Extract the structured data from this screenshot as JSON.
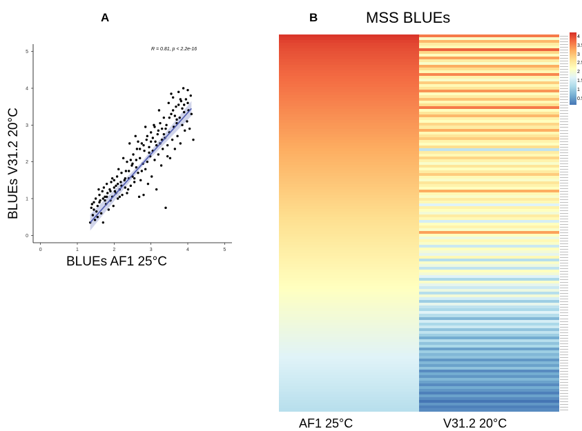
{
  "panel_a": {
    "letter": "A",
    "xlabel": "BLUEs AF1 25°C",
    "ylabel": "BLUEs V31.2 20°C",
    "stat": "R = 0.81, p < 2.2e-16"
  },
  "panel_b": {
    "letter": "B",
    "title": "MSS BLUEs",
    "col_labels": [
      "AF1  25°C",
      "V31.2   20°C"
    ],
    "legend_ticks": [
      "4",
      "3.5",
      "3",
      "2.5",
      "2",
      "1.5",
      "1",
      "0.5"
    ]
  },
  "colors": {
    "fit_line": "#4f5bb0",
    "confidence_band": "#aab0d8",
    "point": "#000000"
  },
  "chart_data": [
    {
      "type": "scatter",
      "xlabel": "BLUEs AF1 25°C",
      "ylabel": "BLUEs V31.2 20°C",
      "xlim": [
        -0.2,
        5.2
      ],
      "ylim": [
        -0.2,
        5.2
      ],
      "xticks": [
        "0",
        "1",
        "2",
        "3",
        "4",
        "5"
      ],
      "yticks": [
        "0",
        "1",
        "2",
        "3",
        "4",
        "5"
      ],
      "grid": false,
      "annotation": "R = 0.81, p < 2.2e-16",
      "fit": {
        "x": [
          1.35,
          4.1
        ],
        "y": [
          0.35,
          3.45
        ]
      },
      "points": [
        [
          1.35,
          0.35
        ],
        [
          1.38,
          0.75
        ],
        [
          1.4,
          0.85
        ],
        [
          1.42,
          0.55
        ],
        [
          1.45,
          0.9
        ],
        [
          1.48,
          0.42
        ],
        [
          1.5,
          1.0
        ],
        [
          1.52,
          0.65
        ],
        [
          1.55,
          0.8
        ],
        [
          1.58,
          1.25
        ],
        [
          1.6,
          1.1
        ],
        [
          1.62,
          0.95
        ],
        [
          1.65,
          0.6
        ],
        [
          1.68,
          1.2
        ],
        [
          1.7,
          0.35
        ],
        [
          1.72,
          1.3
        ],
        [
          1.75,
          1.05
        ],
        [
          1.78,
          0.85
        ],
        [
          1.8,
          1.4
        ],
        [
          1.82,
          1.15
        ],
        [
          1.85,
          0.7
        ],
        [
          1.88,
          1.25
        ],
        [
          1.9,
          0.95
        ],
        [
          1.92,
          1.45
        ],
        [
          1.95,
          1.05
        ],
        [
          1.98,
          0.8
        ],
        [
          2.0,
          1.5
        ],
        [
          2.02,
          1.2
        ],
        [
          2.05,
          1.35
        ],
        [
          2.08,
          1.6
        ],
        [
          2.1,
          1.0
        ],
        [
          2.12,
          1.8
        ],
        [
          2.15,
          1.25
        ],
        [
          2.18,
          1.45
        ],
        [
          2.2,
          1.7
        ],
        [
          2.22,
          1.1
        ],
        [
          2.25,
          2.1
        ],
        [
          2.28,
          1.5
        ],
        [
          2.3,
          1.3
        ],
        [
          2.32,
          1.75
        ],
        [
          2.35,
          2.0
        ],
        [
          2.38,
          1.25
        ],
        [
          2.4,
          1.55
        ],
        [
          2.42,
          2.5
        ],
        [
          2.45,
          1.35
        ],
        [
          2.48,
          1.9
        ],
        [
          2.5,
          1.6
        ],
        [
          2.52,
          2.2
        ],
        [
          2.55,
          1.45
        ],
        [
          2.58,
          2.7
        ],
        [
          2.6,
          1.85
        ],
        [
          2.62,
          2.35
        ],
        [
          2.65,
          1.7
        ],
        [
          2.68,
          1.05
        ],
        [
          2.7,
          2.1
        ],
        [
          2.72,
          1.5
        ],
        [
          2.75,
          2.5
        ],
        [
          2.78,
          1.95
        ],
        [
          2.8,
          1.1
        ],
        [
          2.82,
          2.3
        ],
        [
          2.85,
          1.8
        ],
        [
          2.88,
          2.6
        ],
        [
          2.9,
          2.0
        ],
        [
          2.92,
          1.4
        ],
        [
          2.95,
          2.4
        ],
        [
          2.98,
          2.15
        ],
        [
          3.0,
          2.8
        ],
        [
          3.02,
          1.6
        ],
        [
          3.05,
          2.3
        ],
        [
          3.08,
          3.0
        ],
        [
          3.1,
          2.05
        ],
        [
          3.12,
          2.55
        ],
        [
          3.15,
          1.25
        ],
        [
          3.18,
          2.75
        ],
        [
          3.2,
          2.2
        ],
        [
          3.22,
          3.4
        ],
        [
          3.25,
          2.5
        ],
        [
          3.28,
          1.9
        ],
        [
          3.3,
          2.9
        ],
        [
          3.32,
          2.35
        ],
        [
          3.35,
          3.2
        ],
        [
          3.38,
          2.65
        ],
        [
          3.4,
          0.75
        ],
        [
          3.42,
          3.0
        ],
        [
          3.45,
          2.45
        ],
        [
          3.48,
          3.6
        ],
        [
          3.5,
          2.8
        ],
        [
          3.52,
          2.1
        ],
        [
          3.55,
          3.3
        ],
        [
          3.58,
          2.6
        ],
        [
          3.6,
          3.75
        ],
        [
          3.62,
          2.95
        ],
        [
          3.65,
          2.35
        ],
        [
          3.68,
          3.5
        ],
        [
          3.7,
          3.05
        ],
        [
          3.72,
          2.7
        ],
        [
          3.75,
          3.9
        ],
        [
          3.78,
          3.2
        ],
        [
          3.8,
          2.5
        ],
        [
          3.82,
          3.65
        ],
        [
          3.85,
          3.0
        ],
        [
          3.88,
          4.0
        ],
        [
          3.9,
          3.35
        ],
        [
          3.92,
          2.85
        ],
        [
          3.95,
          3.7
        ],
        [
          3.98,
          3.1
        ],
        [
          4.0,
          3.95
        ],
        [
          4.02,
          3.4
        ],
        [
          4.05,
          2.9
        ],
        [
          4.08,
          3.8
        ],
        [
          4.1,
          3.3
        ],
        [
          4.15,
          2.6
        ],
        [
          1.55,
          0.5
        ],
        [
          1.95,
          1.55
        ],
        [
          2.15,
          1.05
        ],
        [
          2.45,
          2.05
        ],
        [
          2.65,
          2.55
        ],
        [
          2.85,
          2.95
        ],
        [
          3.05,
          2.65
        ],
        [
          3.25,
          3.05
        ],
        [
          3.45,
          2.15
        ],
        [
          3.65,
          3.25
        ],
        [
          3.85,
          3.45
        ],
        [
          3.75,
          3.55
        ],
        [
          3.55,
          3.85
        ],
        [
          3.35,
          2.75
        ],
        [
          3.15,
          2.45
        ],
        [
          2.95,
          2.25
        ],
        [
          2.75,
          1.75
        ],
        [
          2.55,
          1.55
        ],
        [
          2.35,
          1.15
        ],
        [
          2.05,
          1.15
        ],
        [
          1.75,
          0.95
        ],
        [
          1.45,
          0.7
        ],
        [
          3.6,
          3.4
        ],
        [
          3.7,
          3.15
        ],
        [
          3.8,
          3.7
        ],
        [
          3.9,
          3.55
        ],
        [
          4.0,
          3.6
        ],
        [
          3.5,
          3.2
        ],
        [
          3.4,
          2.9
        ],
        [
          3.3,
          2.6
        ],
        [
          3.2,
          2.85
        ],
        [
          3.1,
          2.95
        ],
        [
          3.0,
          2.55
        ],
        [
          2.9,
          2.7
        ],
        [
          2.8,
          2.45
        ],
        [
          2.7,
          2.35
        ],
        [
          2.6,
          2.05
        ],
        [
          2.5,
          1.95
        ],
        [
          2.4,
          1.75
        ],
        [
          2.3,
          1.55
        ],
        [
          2.2,
          1.35
        ],
        [
          2.1,
          1.4
        ],
        [
          2.0,
          1.3
        ],
        [
          1.9,
          1.2
        ],
        [
          1.8,
          1.05
        ],
        [
          1.7,
          1.0
        ],
        [
          1.6,
          0.9
        ]
      ]
    },
    {
      "type": "heatmap",
      "title": "MSS BLUEs",
      "columns": [
        "AF1  25°C",
        "V31.2   20°C"
      ],
      "color_range": [
        0.3,
        4.2
      ],
      "rows": [
        [
          4.15,
          3.6
        ],
        [
          4.1,
          2.1
        ],
        [
          4.05,
          3.1
        ],
        [
          4.0,
          2.5
        ],
        [
          3.98,
          2.3
        ],
        [
          3.95,
          3.8
        ],
        [
          3.92,
          2.8
        ],
        [
          3.9,
          2.2
        ],
        [
          3.88,
          3.3
        ],
        [
          3.85,
          2.5
        ],
        [
          3.83,
          2.1
        ],
        [
          3.8,
          3.2
        ],
        [
          3.78,
          2.7
        ],
        [
          3.76,
          2.3
        ],
        [
          3.74,
          3.5
        ],
        [
          3.72,
          2.4
        ],
        [
          3.7,
          2.1
        ],
        [
          3.68,
          2.9
        ],
        [
          3.66,
          2.3
        ],
        [
          3.64,
          2.6
        ],
        [
          3.62,
          3.4
        ],
        [
          3.6,
          2.2
        ],
        [
          3.58,
          2.5
        ],
        [
          3.56,
          3.0
        ],
        [
          3.54,
          2.3
        ],
        [
          3.52,
          2.7
        ],
        [
          3.5,
          3.6
        ],
        [
          3.48,
          2.2
        ],
        [
          3.46,
          2.6
        ],
        [
          3.44,
          3.1
        ],
        [
          3.42,
          2.4
        ],
        [
          3.4,
          2.2
        ],
        [
          3.38,
          2.8
        ],
        [
          3.36,
          2.5
        ],
        [
          3.34,
          3.2
        ],
        [
          3.32,
          2.3
        ],
        [
          3.3,
          2.6
        ],
        [
          3.28,
          2.9
        ],
        [
          3.26,
          2.4
        ],
        [
          3.24,
          2.2
        ],
        [
          3.22,
          2.7
        ],
        [
          3.2,
          1.4
        ],
        [
          3.18,
          2.5
        ],
        [
          3.16,
          2.3
        ],
        [
          3.14,
          2.8
        ],
        [
          3.12,
          2.4
        ],
        [
          3.1,
          2.1
        ],
        [
          3.08,
          2.6
        ],
        [
          3.06,
          2.2
        ],
        [
          3.04,
          2.5
        ],
        [
          3.02,
          2.9
        ],
        [
          3.0,
          2.3
        ],
        [
          2.98,
          2.1
        ],
        [
          2.96,
          2.6
        ],
        [
          2.94,
          2.4
        ],
        [
          2.92,
          2.2
        ],
        [
          2.9,
          3.2
        ],
        [
          2.88,
          2.3
        ],
        [
          2.86,
          2.1
        ],
        [
          2.84,
          2.5
        ],
        [
          2.82,
          2.3
        ],
        [
          2.8,
          1.7
        ],
        [
          2.78,
          2.4
        ],
        [
          2.76,
          2.2
        ],
        [
          2.74,
          2.0
        ],
        [
          2.72,
          2.5
        ],
        [
          2.7,
          2.3
        ],
        [
          2.68,
          1.6
        ],
        [
          2.66,
          2.2
        ],
        [
          2.64,
          2.4
        ],
        [
          2.62,
          2.1
        ],
        [
          2.6,
          3.3
        ],
        [
          2.58,
          2.2
        ],
        [
          2.56,
          1.9
        ],
        [
          2.54,
          2.3
        ],
        [
          2.52,
          2.1
        ],
        [
          2.5,
          1.5
        ],
        [
          2.48,
          2.2
        ],
        [
          2.46,
          2.0
        ],
        [
          2.44,
          1.8
        ],
        [
          2.42,
          2.3
        ],
        [
          2.4,
          1.3
        ],
        [
          2.38,
          2.1
        ],
        [
          2.36,
          1.9
        ],
        [
          2.34,
          1.4
        ],
        [
          2.32,
          2.2
        ],
        [
          2.3,
          2.0
        ],
        [
          2.28,
          1.7
        ],
        [
          2.26,
          1.2
        ],
        [
          2.24,
          2.1
        ],
        [
          2.22,
          1.8
        ],
        [
          2.2,
          1.5
        ],
        [
          2.18,
          1.9
        ],
        [
          2.16,
          1.3
        ],
        [
          2.14,
          2.0
        ],
        [
          2.12,
          1.6
        ],
        [
          2.1,
          1.1
        ],
        [
          2.08,
          1.8
        ],
        [
          2.06,
          1.4
        ],
        [
          2.04,
          1.2
        ],
        [
          2.02,
          1.7
        ],
        [
          2.0,
          1.3
        ],
        [
          1.98,
          0.9
        ],
        [
          1.96,
          1.6
        ],
        [
          1.94,
          1.2
        ],
        [
          1.92,
          1.5
        ],
        [
          1.9,
          1.0
        ],
        [
          1.88,
          1.4
        ],
        [
          1.86,
          1.1
        ],
        [
          1.84,
          0.8
        ],
        [
          1.82,
          1.3
        ],
        [
          1.8,
          1.0
        ],
        [
          1.78,
          1.2
        ],
        [
          1.76,
          0.7
        ],
        [
          1.74,
          1.1
        ],
        [
          1.72,
          0.9
        ],
        [
          1.7,
          1.0
        ],
        [
          1.68,
          0.6
        ],
        [
          1.66,
          0.9
        ],
        [
          1.64,
          0.7
        ],
        [
          1.62,
          1.0
        ],
        [
          1.6,
          0.5
        ],
        [
          1.58,
          0.8
        ],
        [
          1.56,
          0.6
        ],
        [
          1.54,
          0.9
        ],
        [
          1.52,
          0.7
        ],
        [
          1.5,
          0.5
        ],
        [
          1.48,
          0.8
        ],
        [
          1.46,
          0.6
        ],
        [
          1.44,
          0.4
        ],
        [
          1.42,
          0.7
        ],
        [
          1.4,
          0.5
        ],
        [
          1.38,
          0.3
        ],
        [
          1.36,
          0.6
        ],
        [
          1.34,
          0.4
        ],
        [
          1.32,
          0.5
        ]
      ]
    }
  ]
}
